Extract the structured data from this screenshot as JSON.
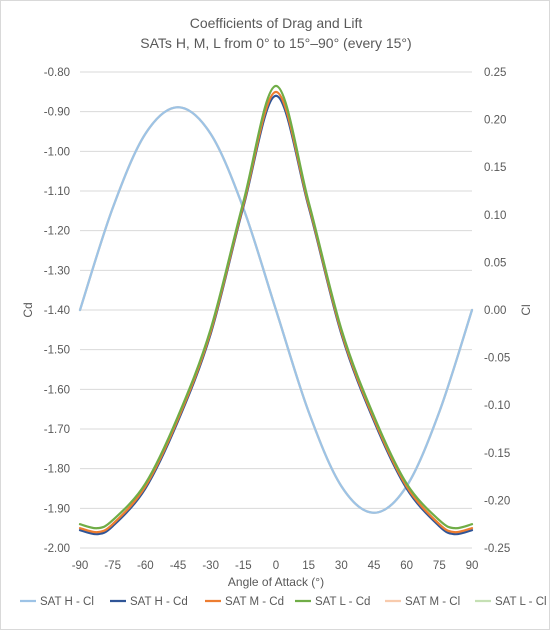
{
  "chart_data": {
    "type": "line",
    "title": "Coefficients of Drag and Lift",
    "subtitle": "SATs H, M, L from 0° to 15°–90° (every 15°)",
    "xlabel": "Angle of Attack (°)",
    "ylabel": "Cd",
    "y2label": "Cl",
    "xlim": [
      -90,
      90
    ],
    "ylim": [
      -2.0,
      -0.8
    ],
    "y2lim": [
      -0.25,
      0.25
    ],
    "x_ticks": [
      "-90",
      "-75",
      "-60",
      "-45",
      "-30",
      "-15",
      "0",
      "15",
      "30",
      "45",
      "60",
      "75",
      "90"
    ],
    "y_ticks": [
      "-0.80",
      "-0.90",
      "-1.00",
      "-1.10",
      "-1.20",
      "-1.30",
      "-1.40",
      "-1.50",
      "-1.60",
      "-1.70",
      "-1.80",
      "-1.90",
      "-2.00"
    ],
    "y2_ticks": [
      "0.25",
      "0.20",
      "0.15",
      "0.10",
      "0.05",
      "0.00",
      "-0.05",
      "-0.10",
      "-0.15",
      "-0.20",
      "-0.25"
    ],
    "grid": "horizontal",
    "legend_position": "bottom",
    "series": [
      {
        "name": "SAT H - Cl",
        "axis": "right",
        "color": "#9dc3e6",
        "x": [
          -90,
          -75,
          -60,
          -45,
          -30,
          -15,
          0,
          15,
          30,
          45,
          60,
          75,
          90
        ],
        "y": [
          0.0,
          0.107,
          0.185,
          0.213,
          0.185,
          0.107,
          0.0,
          -0.107,
          -0.185,
          -0.213,
          -0.185,
          -0.107,
          0.0
        ]
      },
      {
        "name": "SAT H - Cd",
        "axis": "left",
        "color": "#2f5597",
        "x": [
          -90,
          -82,
          -75,
          -60,
          -45,
          -30,
          -15,
          0,
          15,
          30,
          45,
          60,
          75,
          82,
          90
        ],
        "y": [
          -1.955,
          -1.965,
          -1.945,
          -1.85,
          -1.68,
          -1.46,
          -1.14,
          -0.86,
          -1.14,
          -1.46,
          -1.68,
          -1.85,
          -1.945,
          -1.965,
          -1.955
        ]
      },
      {
        "name": "SAT M - Cd",
        "axis": "left",
        "color": "#ed7d31",
        "x": [
          -90,
          -82,
          -75,
          -60,
          -45,
          -30,
          -15,
          0,
          15,
          30,
          45,
          60,
          75,
          82,
          90
        ],
        "y": [
          -1.95,
          -1.96,
          -1.94,
          -1.845,
          -1.675,
          -1.455,
          -1.135,
          -0.85,
          -1.135,
          -1.455,
          -1.675,
          -1.845,
          -1.94,
          -1.96,
          -1.95
        ]
      },
      {
        "name": "SAT L - Cd",
        "axis": "left",
        "color": "#70ad47",
        "x": [
          -90,
          -82,
          -75,
          -60,
          -45,
          -30,
          -15,
          0,
          15,
          30,
          45,
          60,
          75,
          82,
          90
        ],
        "y": [
          -1.94,
          -1.95,
          -1.93,
          -1.838,
          -1.668,
          -1.448,
          -1.128,
          -0.835,
          -1.128,
          -1.448,
          -1.668,
          -1.838,
          -1.93,
          -1.95,
          -1.94
        ]
      },
      {
        "name": "SAT M - Cl",
        "axis": "right",
        "color": "#f8cbad",
        "x": [
          -90,
          -75,
          -60,
          -45,
          -30,
          -15,
          0,
          15,
          30,
          45,
          60,
          75,
          90
        ],
        "y": [
          0.0,
          0.107,
          0.185,
          0.213,
          0.185,
          0.107,
          0.0,
          -0.107,
          -0.185,
          -0.213,
          -0.185,
          -0.107,
          0.0
        ]
      },
      {
        "name": "SAT L - Cl",
        "axis": "right",
        "color": "#c5e0b4",
        "x": [
          -90,
          -75,
          -60,
          -45,
          -30,
          -15,
          0,
          15,
          30,
          45,
          60,
          75,
          90
        ],
        "y": [
          0.0,
          0.107,
          0.185,
          0.213,
          0.185,
          0.107,
          0.0,
          -0.107,
          -0.185,
          -0.213,
          -0.185,
          -0.107,
          0.0
        ]
      }
    ]
  }
}
